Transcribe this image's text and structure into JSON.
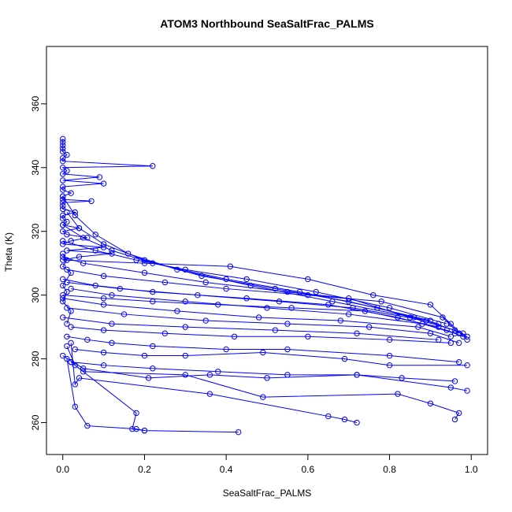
{
  "chart_data": {
    "type": "line",
    "title": "ATOM3 Northbound SeaSaltFrac_PALMS",
    "xlabel": "SeaSaltFrac_PALMS",
    "ylabel": "Theta (K)",
    "xlim": [
      -0.04,
      1.04
    ],
    "ylim": [
      250,
      378
    ],
    "xticks": [
      0.0,
      0.2,
      0.4,
      0.6,
      0.8,
      1.0
    ],
    "xtick_labels": [
      "0.0",
      "0.2",
      "0.4",
      "0.6",
      "0.8",
      "1.0"
    ],
    "yticks": [
      260,
      280,
      300,
      320,
      340,
      360
    ],
    "ytick_labels": [
      "260",
      "280",
      "300",
      "320",
      "340",
      "360"
    ],
    "grid": false,
    "marker": "open-circle",
    "line_color": "#0000ff",
    "series": [
      {
        "values": [
          [
            0.0,
            349
          ],
          [
            0.0,
            348
          ],
          [
            0.0,
            347
          ],
          [
            0.0,
            346
          ],
          [
            0.0,
            345
          ],
          [
            0.01,
            344
          ],
          [
            0.0,
            343
          ],
          [
            0.0,
            342
          ],
          [
            0.22,
            340.5
          ],
          [
            0.0,
            340
          ],
          [
            0.01,
            339
          ],
          [
            0.0,
            338
          ],
          [
            0.09,
            337
          ],
          [
            0.0,
            336
          ],
          [
            0.1,
            335
          ],
          [
            0.0,
            334
          ],
          [
            0.0,
            333
          ],
          [
            0.02,
            332
          ],
          [
            0.0,
            331
          ],
          [
            0.0,
            330
          ],
          [
            0.07,
            329.5
          ],
          [
            0.0,
            329
          ],
          [
            0.0,
            328
          ],
          [
            0.0,
            327
          ],
          [
            0.03,
            326
          ],
          [
            0.0,
            325
          ],
          [
            0.0,
            324
          ],
          [
            0.01,
            323
          ],
          [
            0.0,
            322
          ],
          [
            0.04,
            321
          ],
          [
            0.0,
            320
          ],
          [
            0.01,
            319
          ],
          [
            0.06,
            318
          ],
          [
            0.02,
            317
          ],
          [
            0.0,
            316
          ],
          [
            0.1,
            315
          ],
          [
            0.01,
            314
          ],
          [
            0.12,
            313
          ],
          [
            0.04,
            312
          ],
          [
            0.0,
            311
          ],
          [
            0.2,
            310
          ],
          [
            0.41,
            309
          ],
          [
            0.6,
            305
          ],
          [
            0.76,
            300
          ],
          [
            0.9,
            297
          ],
          [
            0.95,
            291
          ],
          [
            0.99,
            286
          ]
        ]
      },
      {
        "values": [
          [
            0.0,
            312
          ],
          [
            0.05,
            310
          ],
          [
            0.2,
            307
          ],
          [
            0.35,
            304
          ],
          [
            0.55,
            301
          ],
          [
            0.7,
            299
          ],
          [
            0.85,
            293
          ],
          [
            0.96,
            289
          ],
          [
            0.99,
            287
          ]
        ]
      },
      {
        "values": [
          [
            0.01,
            308
          ],
          [
            0.1,
            306
          ],
          [
            0.25,
            304
          ],
          [
            0.4,
            302
          ],
          [
            0.6,
            300
          ],
          [
            0.78,
            298
          ],
          [
            0.93,
            293
          ],
          [
            0.97,
            288
          ]
        ]
      },
      {
        "values": [
          [
            0.0,
            305
          ],
          [
            0.08,
            303
          ],
          [
            0.22,
            301
          ],
          [
            0.45,
            299
          ],
          [
            0.65,
            297
          ],
          [
            0.82,
            293
          ],
          [
            0.94,
            289
          ],
          [
            0.98,
            287
          ]
        ]
      },
      {
        "values": [
          [
            0.02,
            302
          ],
          [
            0.12,
            300
          ],
          [
            0.3,
            298
          ],
          [
            0.5,
            296
          ],
          [
            0.7,
            294
          ],
          [
            0.88,
            291
          ],
          [
            0.96,
            288
          ]
        ]
      },
      {
        "values": [
          [
            0.0,
            299
          ],
          [
            0.1,
            297
          ],
          [
            0.28,
            295
          ],
          [
            0.48,
            293
          ],
          [
            0.68,
            292
          ],
          [
            0.87,
            290
          ],
          [
            0.95,
            287
          ]
        ]
      },
      {
        "values": [
          [
            0.01,
            296
          ],
          [
            0.15,
            294
          ],
          [
            0.35,
            292
          ],
          [
            0.55,
            291
          ],
          [
            0.75,
            290
          ],
          [
            0.9,
            288
          ],
          [
            0.97,
            285
          ]
        ]
      },
      {
        "values": [
          [
            0.0,
            293
          ],
          [
            0.12,
            291
          ],
          [
            0.3,
            290
          ],
          [
            0.52,
            289
          ],
          [
            0.72,
            288
          ],
          [
            0.92,
            286
          ]
        ]
      },
      {
        "values": [
          [
            0.02,
            290
          ],
          [
            0.1,
            289
          ],
          [
            0.25,
            288
          ],
          [
            0.42,
            287
          ],
          [
            0.6,
            287
          ],
          [
            0.8,
            286
          ],
          [
            0.95,
            285
          ]
        ]
      },
      {
        "values": [
          [
            0.01,
            287
          ],
          [
            0.06,
            286
          ],
          [
            0.12,
            285
          ],
          [
            0.22,
            284
          ],
          [
            0.4,
            283
          ],
          [
            0.55,
            283
          ],
          [
            0.8,
            281
          ],
          [
            0.97,
            279
          ]
        ]
      },
      {
        "values": [
          [
            0.03,
            283
          ],
          [
            0.1,
            282
          ],
          [
            0.2,
            281
          ],
          [
            0.3,
            281
          ],
          [
            0.49,
            282
          ],
          [
            0.69,
            280
          ],
          [
            0.8,
            278
          ],
          [
            0.99,
            278
          ]
        ]
      },
      {
        "values": [
          [
            0.02,
            279
          ],
          [
            0.1,
            278
          ],
          [
            0.22,
            277
          ],
          [
            0.38,
            276
          ],
          [
            0.55,
            275
          ],
          [
            0.72,
            275
          ],
          [
            0.83,
            274
          ],
          [
            0.96,
            273
          ]
        ]
      },
      {
        "values": [
          [
            0.0,
            281
          ],
          [
            0.05,
            277
          ],
          [
            0.21,
            274
          ],
          [
            0.36,
            275
          ],
          [
            0.5,
            274
          ],
          [
            0.72,
            275
          ],
          [
            0.95,
            271
          ],
          [
            0.99,
            270
          ]
        ]
      },
      {
        "values": [
          [
            0.01,
            284
          ],
          [
            0.03,
            278
          ],
          [
            0.05,
            276
          ],
          [
            0.3,
            275
          ],
          [
            0.49,
            268
          ],
          [
            0.82,
            269
          ],
          [
            0.9,
            266
          ],
          [
            0.97,
            263
          ],
          [
            0.96,
            261
          ]
        ]
      },
      {
        "values": [
          [
            0.02,
            285
          ],
          [
            0.03,
            272
          ],
          [
            0.04,
            274
          ],
          [
            0.36,
            269
          ],
          [
            0.65,
            262
          ],
          [
            0.69,
            261
          ],
          [
            0.72,
            260
          ]
        ]
      },
      {
        "values": [
          [
            0.01,
            280
          ],
          [
            0.03,
            265
          ],
          [
            0.06,
            259
          ],
          [
            0.18,
            258
          ],
          [
            0.2,
            257.5
          ],
          [
            0.43,
            257
          ]
        ]
      },
      {
        "values": [
          [
            0.02,
            279
          ],
          [
            0.18,
            263
          ],
          [
            0.17,
            258
          ],
          [
            0.2,
            257.5
          ]
        ]
      },
      {
        "values": [
          [
            0.01,
            291
          ],
          [
            0.02,
            295
          ],
          [
            0.0,
            298
          ],
          [
            0.01,
            301
          ],
          [
            0.0,
            303
          ],
          [
            0.02,
            307
          ],
          [
            0.0,
            309
          ],
          [
            0.01,
            311
          ],
          [
            0.0,
            313
          ]
        ]
      },
      {
        "values": [
          [
            0.0,
            300
          ],
          [
            0.1,
            299
          ],
          [
            0.22,
            298
          ],
          [
            0.38,
            297
          ],
          [
            0.56,
            296
          ],
          [
            0.74,
            295
          ],
          [
            0.92,
            290
          ]
        ]
      },
      {
        "values": [
          [
            0.01,
            304
          ],
          [
            0.14,
            302
          ],
          [
            0.33,
            300
          ],
          [
            0.53,
            298
          ],
          [
            0.71,
            296
          ],
          [
            0.89,
            292
          ],
          [
            0.98,
            288
          ]
        ]
      },
      {
        "values": [
          [
            0.0,
            317
          ],
          [
            0.08,
            314
          ],
          [
            0.18,
            311
          ],
          [
            0.3,
            308
          ],
          [
            0.45,
            305
          ],
          [
            0.62,
            301
          ],
          [
            0.8,
            296
          ],
          [
            0.94,
            291
          ]
        ]
      },
      {
        "values": [
          [
            0.0,
            322
          ],
          [
            0.05,
            318
          ],
          [
            0.12,
            314
          ],
          [
            0.22,
            310
          ],
          [
            0.4,
            305
          ],
          [
            0.58,
            301
          ],
          [
            0.77,
            296
          ],
          [
            0.92,
            291
          ]
        ]
      },
      {
        "values": [
          [
            0.01,
            326
          ],
          [
            0.04,
            321
          ],
          [
            0.1,
            316
          ],
          [
            0.2,
            311
          ],
          [
            0.34,
            306
          ],
          [
            0.52,
            302
          ],
          [
            0.7,
            298
          ],
          [
            0.9,
            292
          ]
        ]
      },
      {
        "values": [
          [
            0.0,
            331
          ],
          [
            0.03,
            325
          ],
          [
            0.08,
            319
          ],
          [
            0.16,
            313
          ],
          [
            0.28,
            308
          ],
          [
            0.46,
            303
          ],
          [
            0.66,
            298
          ],
          [
            0.86,
            293
          ]
        ]
      }
    ]
  }
}
